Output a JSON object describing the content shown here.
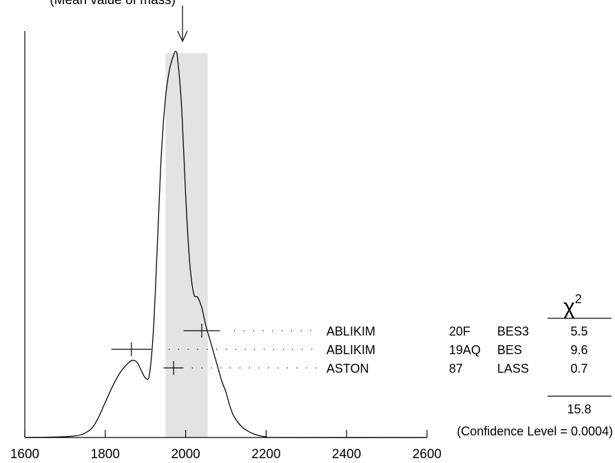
{
  "chart_data": {
    "type": "line",
    "top_label": "(Mean value of mass)",
    "x_ticks": [
      1600,
      1800,
      2000,
      2200,
      2400,
      2600
    ],
    "xlim": [
      1600,
      2600
    ],
    "weighted_average": {
      "value": 1975,
      "band": [
        1950,
        2055
      ]
    },
    "ideogram_curve": {
      "x": [
        1600,
        1720,
        1760,
        1780,
        1800,
        1820,
        1840,
        1860,
        1870,
        1880,
        1890,
        1900,
        1910,
        1920,
        1930,
        1940,
        1950,
        1960,
        1970,
        1975,
        1980,
        1990,
        2000,
        2010,
        2020,
        2030,
        2040,
        2050,
        2060,
        2070,
        2080,
        2090,
        2100,
        2110,
        2120,
        2140,
        2160,
        2180,
        2200,
        2240,
        2600
      ],
      "y": [
        0.0,
        0.004,
        0.02,
        0.05,
        0.1,
        0.15,
        0.19,
        0.215,
        0.22,
        0.213,
        0.19,
        0.17,
        0.18,
        0.31,
        0.56,
        0.82,
        0.97,
        1.05,
        1.09,
        1.1,
        1.08,
        0.94,
        0.69,
        0.5,
        0.41,
        0.4,
        0.37,
        0.32,
        0.28,
        0.24,
        0.2,
        0.16,
        0.13,
        0.09,
        0.06,
        0.03,
        0.015,
        0.006,
        0.002,
        0.0,
        0.0
      ]
    },
    "measurements": [
      {
        "author": "ABLIKIM",
        "ref": "20F",
        "experiment": "BES3",
        "value": 2040,
        "error": 45,
        "chi2": "5.5"
      },
      {
        "author": "ABLIKIM",
        "ref": "19AQ",
        "experiment": "BES",
        "value": 1865,
        "error": 50,
        "chi2": "9.6"
      },
      {
        "author": "ASTON",
        "ref": "87",
        "experiment": "LASS",
        "value": 1970,
        "error": 25,
        "chi2": "0.7"
      }
    ],
    "chi2_header": "χ",
    "chi2_exponent": "2",
    "chi2_total": "15.8",
    "confidence_text": "(Confidence Level = 0.0004)"
  }
}
